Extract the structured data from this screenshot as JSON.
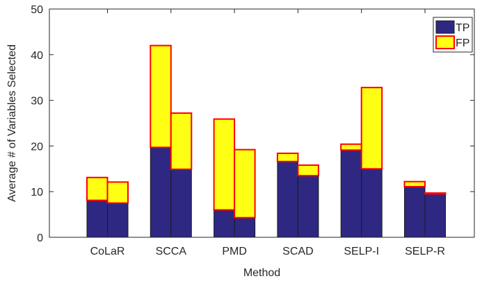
{
  "chart_data": {
    "type": "bar",
    "stacked": true,
    "grouped": true,
    "title": "",
    "xlabel": "Method",
    "ylabel": "Average # of Variables Selected",
    "ylim": [
      0,
      50
    ],
    "yticks": [
      0,
      10,
      20,
      30,
      40,
      50
    ],
    "grid": false,
    "legend_position": "top-right",
    "categories": [
      "CoLaR",
      "SCCA",
      "PMD",
      "SCAD",
      "SELP-I",
      "SELP-R"
    ],
    "bars_per_category": 2,
    "series": [
      {
        "name": "TP",
        "color": "#2e2883",
        "edge": "#1a1a1a",
        "values": [
          [
            8.1,
            7.5
          ],
          [
            19.7,
            14.9
          ],
          [
            6.0,
            4.3
          ],
          [
            16.6,
            13.5
          ],
          [
            19.1,
            15.0
          ],
          [
            11.1,
            9.5
          ]
        ]
      },
      {
        "name": "FP",
        "color": "#ffff14",
        "edge": "#ff0000",
        "values": [
          [
            5.0,
            4.6
          ],
          [
            22.3,
            12.3
          ],
          [
            19.9,
            14.9
          ],
          [
            1.8,
            2.3
          ],
          [
            1.3,
            17.8
          ],
          [
            1.1,
            0.2
          ]
        ]
      }
    ]
  }
}
